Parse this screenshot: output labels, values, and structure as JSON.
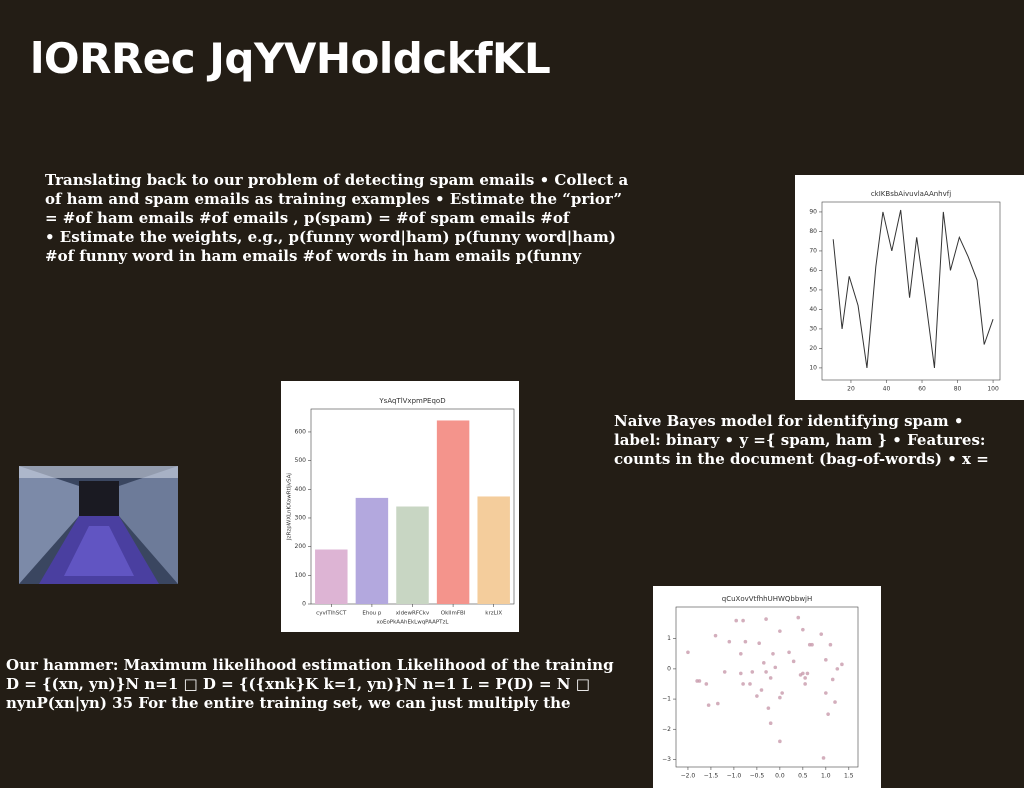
{
  "title": "lORRec JqYVHoldckfKL",
  "paragraphs": [
    [
      "Translating back to our problem of detecting spam emails • Collect a",
      "of ham and spam emails as training examples • Estimate the “prior”",
      "= #of ham emails #of emails , p(spam) = #of spam emails #of",
      "• Estimate the weights, e.g., p(funny word|ham) p(funny word|ham)",
      "#of funny word in ham emails #of words in ham emails p(funny"
    ],
    [
      "Naive Bayes model for identifying spam •",
      "label: binary • y ={ spam, ham } • Features:",
      "counts in the document (bag-of-words) • x ="
    ],
    [
      "Our hammer: Maximum likelihood estimation Likelihood of the training",
      "D = {(xn, yn)}N n=1 □ D = {({xnk}K k=1, yn)}N n=1 L = P(D) = N □",
      "nynP(xn|yn) 35 For the entire training set, we can just multiply the"
    ]
  ],
  "chart_data": [
    {
      "type": "line",
      "title": "ckIKBsbAivuvlaAAnhvfj",
      "color": "#333333",
      "x": [
        10,
        15,
        19,
        24,
        29,
        34,
        38,
        43,
        48,
        53,
        57,
        62,
        67,
        72,
        76,
        81,
        86,
        91,
        95,
        100
      ],
      "values": [
        76,
        30,
        57,
        42,
        10,
        62,
        90,
        70,
        91,
        46,
        77,
        45,
        10,
        90,
        60,
        77,
        67,
        55,
        22,
        35
      ],
      "xlim": [
        3.7,
        103.9
      ],
      "ylim": [
        3.8,
        95.1
      ],
      "xticks": [
        20,
        40,
        60,
        80,
        100
      ],
      "yticks": [
        10,
        20,
        30,
        40,
        50,
        60,
        70,
        80,
        90
      ]
    },
    {
      "type": "bar",
      "title": "YsAqTlVxpmPEqoD",
      "xlabel": "xoEoPkAAhEkLwqPAAPTzL",
      "ylabel": "JzRzpWXLnKXawRtljvSAj",
      "categories": [
        "cyvITlhSCT",
        "Ehou p",
        "xldewRFCkv",
        "OkIlmFBI",
        "krzLIX"
      ],
      "values": [
        190,
        370,
        340,
        640,
        375
      ],
      "colors": [
        "#ddb4d4",
        "#b3a8de",
        "#c8d6c3",
        "#f4948c",
        "#f4cd9c"
      ],
      "ylim": [
        0,
        680
      ],
      "yticks": [
        0,
        100,
        200,
        300,
        400,
        500,
        600
      ]
    },
    {
      "type": "scatter",
      "title": "qCuXovVtfhhUHWQbbwjH",
      "color": "#c89aab",
      "x": [
        -2.0,
        -1.8,
        -1.75,
        -1.6,
        -1.55,
        -1.35,
        -1.4,
        -1.2,
        -1.1,
        -0.95,
        -0.85,
        -0.85,
        -0.8,
        -0.75,
        -0.8,
        -0.65,
        -0.6,
        -0.45,
        -0.5,
        -0.4,
        -0.35,
        -0.3,
        -0.3,
        -0.2,
        -0.2,
        -0.25,
        -0.15,
        -0.1,
        0.0,
        0.0,
        0.05,
        0.0,
        0.2,
        0.3,
        0.4,
        0.45,
        0.5,
        0.55,
        0.65,
        0.7,
        0.5,
        0.6,
        0.55,
        0.9,
        0.95,
        1.0,
        1.0,
        1.05,
        1.1,
        1.15,
        1.25,
        1.35,
        1.2
      ],
      "values": [
        0.55,
        -0.4,
        -0.4,
        -0.5,
        -1.2,
        -1.15,
        1.1,
        -0.1,
        0.9,
        1.6,
        0.5,
        -0.15,
        1.6,
        0.9,
        -0.5,
        -0.5,
        -0.1,
        0.85,
        -0.9,
        -0.7,
        0.2,
        1.65,
        -0.1,
        -0.3,
        -1.8,
        -1.3,
        0.5,
        0.05,
        1.25,
        -0.95,
        -0.8,
        -2.4,
        0.55,
        0.25,
        1.7,
        -0.2,
        1.3,
        -0.5,
        0.8,
        0.8,
        -0.15,
        -0.15,
        -0.3,
        1.15,
        -2.95,
        0.3,
        -0.8,
        -1.5,
        0.8,
        -0.35,
        0.0,
        0.15,
        -1.1
      ],
      "xlim": [
        -2.26,
        1.7
      ],
      "ylim": [
        -3.25,
        2.05
      ],
      "xticks": [
        {
          "value": -2.0,
          "label": "−2.0"
        },
        {
          "value": -1.5,
          "label": "−1.5"
        },
        {
          "value": -1.0,
          "label": "−1.0"
        },
        {
          "value": -0.5,
          "label": "−0.5"
        },
        {
          "value": 0,
          "label": "0.0"
        },
        {
          "value": 0.5,
          "label": "0.5"
        },
        {
          "value": 1.0,
          "label": "1.0"
        },
        {
          "value": 1.5,
          "label": "1.5"
        }
      ],
      "yticks": [
        {
          "value": -3,
          "label": "−3"
        },
        {
          "value": -2,
          "label": "−2"
        },
        {
          "value": -1,
          "label": "−1"
        },
        0,
        1
      ]
    }
  ]
}
